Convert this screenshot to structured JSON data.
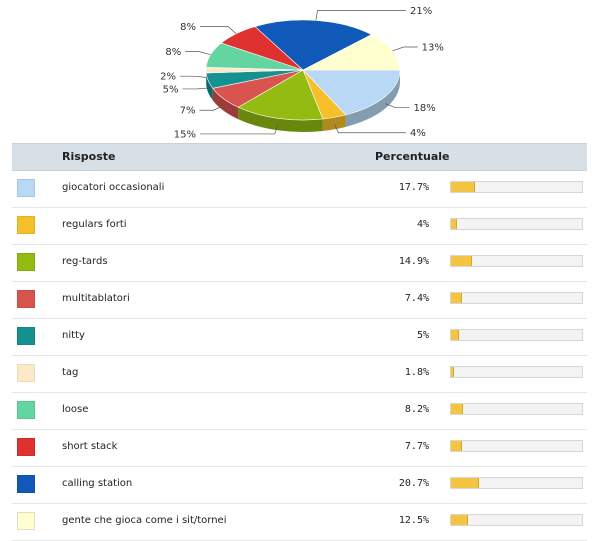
{
  "chart_data": {
    "type": "pie",
    "categories": [
      "giocatori occasionali",
      "regulars forti",
      "reg-tards",
      "multitablatori",
      "nitty",
      "tag",
      "loose",
      "short stack",
      "calling station",
      "gente che gioca come i sit/tornei"
    ],
    "values": [
      17.7,
      4,
      14.9,
      7.4,
      5,
      1.8,
      8.2,
      7.7,
      20.7,
      12.5
    ],
    "value_labels": [
      "18%",
      "4%",
      "15%",
      "7%",
      "5%",
      "2%",
      "8%",
      "8%",
      "21%",
      "13%"
    ],
    "colors": [
      "#b8d8f5",
      "#f5c02a",
      "#93bb12",
      "#d9534f",
      "#169191",
      "#fde9c8",
      "#62d5a1",
      "#e03131",
      "#1159b8",
      "#ffffd0"
    ]
  },
  "table": {
    "headers": {
      "answer": "Risposte",
      "percent": "Percentuale"
    },
    "rows": [
      {
        "label": "giocatori occasionali",
        "percent_text": "17.7%",
        "value": 17.7,
        "color": "#b8d8f5"
      },
      {
        "label": "regulars forti",
        "percent_text": "4%",
        "value": 4,
        "color": "#f5c02a"
      },
      {
        "label": "reg-tards",
        "percent_text": "14.9%",
        "value": 14.9,
        "color": "#93bb12"
      },
      {
        "label": "multitablatori",
        "percent_text": "7.4%",
        "value": 7.4,
        "color": "#d9534f"
      },
      {
        "label": "nitty",
        "percent_text": "5%",
        "value": 5,
        "color": "#169191"
      },
      {
        "label": "tag",
        "percent_text": "1.8%",
        "value": 1.8,
        "color": "#fde9c8"
      },
      {
        "label": "loose",
        "percent_text": "8.2%",
        "value": 8.2,
        "color": "#62d5a1"
      },
      {
        "label": "short stack",
        "percent_text": "7.7%",
        "value": 7.7,
        "color": "#e03131"
      },
      {
        "label": "calling station",
        "percent_text": "20.7%",
        "value": 20.7,
        "color": "#1159b8"
      },
      {
        "label": "gente che gioca come i sit/tornei",
        "percent_text": "12.5%",
        "value": 12.5,
        "color": "#ffffd0"
      }
    ]
  }
}
